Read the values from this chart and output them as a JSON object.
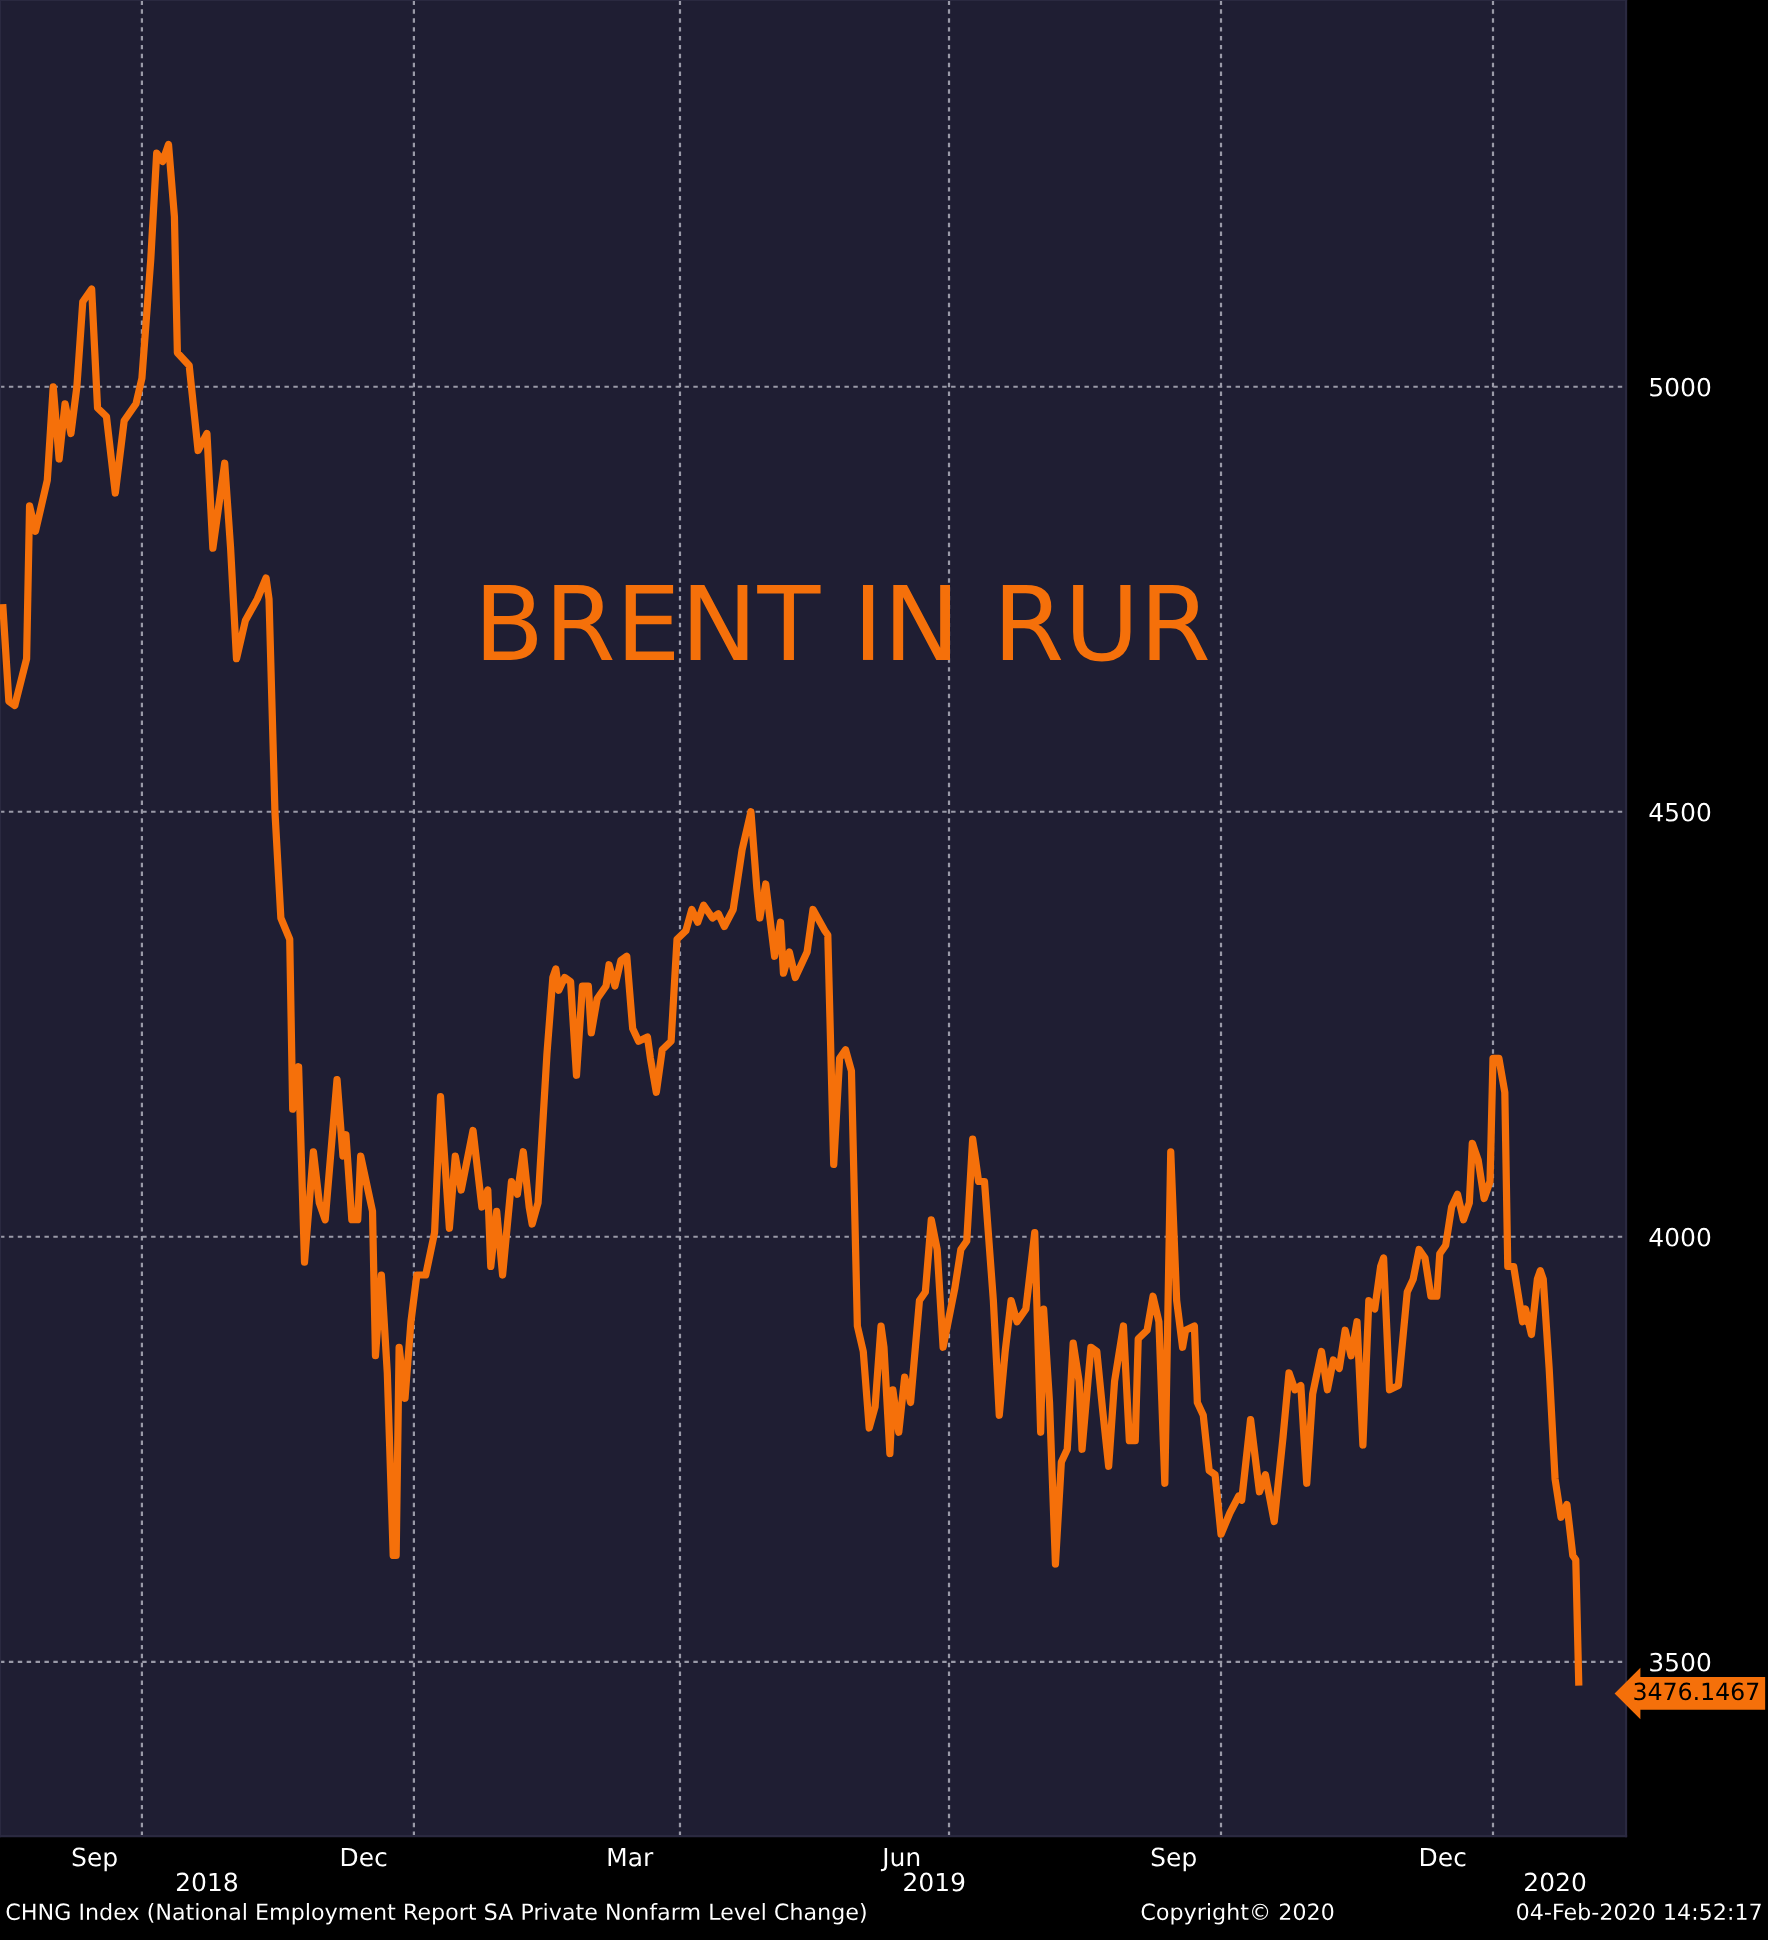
{
  "chart_data": {
    "type": "line",
    "title": "BRENT IN RUR",
    "x": [
      "2018-08-15",
      "2018-08-17",
      "2018-08-19",
      "2018-08-23",
      "2018-08-24",
      "2018-08-26",
      "2018-08-30",
      "2018-09-01",
      "2018-09-03",
      "2018-09-05",
      "2018-09-07",
      "2018-09-09",
      "2018-09-11",
      "2018-09-14",
      "2018-09-16",
      "2018-09-19",
      "2018-09-22",
      "2018-09-25",
      "2018-09-29",
      "2018-10-01",
      "2018-10-04",
      "2018-10-06",
      "2018-10-08",
      "2018-10-10",
      "2018-10-12",
      "2018-10-13",
      "2018-10-17",
      "2018-10-20",
      "2018-10-23",
      "2018-10-25",
      "2018-10-29",
      "2018-10-31",
      "2018-11-02",
      "2018-11-05",
      "2018-11-09",
      "2018-11-12",
      "2018-11-13",
      "2018-11-15",
      "2018-11-17",
      "2018-11-20",
      "2018-11-21",
      "2018-11-23",
      "2018-11-25",
      "2018-11-28",
      "2018-11-30",
      "2018-12-02",
      "2018-12-06",
      "2018-12-08",
      "2018-12-09",
      "2018-12-11",
      "2018-12-13",
      "2018-12-14",
      "2018-12-18",
      "2018-12-19",
      "2018-12-21",
      "2018-12-23",
      "2018-12-25",
      "2018-12-26",
      "2018-12-27",
      "2018-12-29",
      "2018-12-31",
      "2019-01-02",
      "2019-01-05",
      "2019-01-08",
      "2019-01-10",
      "2019-01-13",
      "2019-01-15",
      "2019-01-17",
      "2019-01-21",
      "2019-01-24",
      "2019-01-26",
      "2019-01-27",
      "2019-01-29",
      "2019-01-31",
      "2019-02-03",
      "2019-02-05",
      "2019-02-07",
      "2019-02-09",
      "2019-02-10",
      "2019-02-12",
      "2019-02-15",
      "2019-02-17",
      "2019-02-18",
      "2019-02-19",
      "2019-02-21",
      "2019-02-23",
      "2019-02-25",
      "2019-02-27",
      "2019-03-01",
      "2019-03-02",
      "2019-03-04",
      "2019-03-07",
      "2019-03-08",
      "2019-03-10",
      "2019-03-12",
      "2019-03-14",
      "2019-03-16",
      "2019-03-18",
      "2019-03-21",
      "2019-03-22",
      "2019-03-24",
      "2019-03-26",
      "2019-03-29",
      "2019-03-31",
      "2019-04-03",
      "2019-04-05",
      "2019-04-07",
      "2019-04-09",
      "2019-04-12",
      "2019-04-14",
      "2019-04-16",
      "2019-04-19",
      "2019-04-22",
      "2019-04-25",
      "2019-04-27",
      "2019-04-28",
      "2019-04-30",
      "2019-05-03",
      "2019-05-05",
      "2019-05-06",
      "2019-05-08",
      "2019-05-10",
      "2019-05-14",
      "2019-05-16",
      "2019-05-20",
      "2019-05-21",
      "2019-05-23",
      "2019-05-25",
      "2019-05-27",
      "2019-05-29",
      "2019-05-31",
      "2019-06-02",
      "2019-06-04",
      "2019-06-06",
      "2019-06-08",
      "2019-06-09",
      "2019-06-11",
      "2019-06-12",
      "2019-06-14",
      "2019-06-16",
      "2019-06-18",
      "2019-06-21",
      "2019-06-23",
      "2019-06-25",
      "2019-06-27",
      "2019-06-29",
      "2019-07-03",
      "2019-07-05",
      "2019-07-07",
      "2019-07-09",
      "2019-07-11",
      "2019-07-13",
      "2019-07-16",
      "2019-07-18",
      "2019-07-20",
      "2019-07-22",
      "2019-07-24",
      "2019-07-27",
      "2019-07-30",
      "2019-08-01",
      "2019-08-02",
      "2019-08-04",
      "2019-08-06",
      "2019-08-08",
      "2019-08-10",
      "2019-08-12",
      "2019-08-14",
      "2019-08-15",
      "2019-08-18",
      "2019-08-20",
      "2019-08-22",
      "2019-08-24",
      "2019-08-26",
      "2019-08-29",
      "2019-08-31",
      "2019-09-02",
      "2019-09-03",
      "2019-09-06",
      "2019-09-08",
      "2019-09-10",
      "2019-09-12",
      "2019-09-14",
      "2019-09-16",
      "2019-09-18",
      "2019-09-19",
      "2019-09-22",
      "2019-09-23",
      "2019-09-25",
      "2019-09-27",
      "2019-09-29",
      "2019-10-01",
      "2019-10-04",
      "2019-10-07",
      "2019-10-08",
      "2019-10-11",
      "2019-10-14",
      "2019-10-16",
      "2019-10-19",
      "2019-10-22",
      "2019-10-24",
      "2019-10-26",
      "2019-10-28",
      "2019-10-30",
      "2019-11-01",
      "2019-11-04",
      "2019-11-06",
      "2019-11-08",
      "2019-11-10",
      "2019-11-12",
      "2019-11-14",
      "2019-11-16",
      "2019-11-18",
      "2019-11-20",
      "2019-11-22",
      "2019-11-24",
      "2019-11-25",
      "2019-11-27",
      "2019-11-30",
      "2019-12-03",
      "2019-12-05",
      "2019-12-07",
      "2019-12-09",
      "2019-12-11",
      "2019-12-13",
      "2019-12-14",
      "2019-12-16",
      "2019-12-18",
      "2019-12-20",
      "2019-12-22",
      "2019-12-24",
      "2019-12-25",
      "2019-12-27",
      "2019-12-29",
      "2019-12-31",
      "2020-01-01",
      "2020-01-03",
      "2020-01-05",
      "2020-01-06",
      "2020-01-08",
      "2020-01-11",
      "2020-01-12",
      "2020-01-14",
      "2020-01-16",
      "2020-01-17",
      "2020-01-18",
      "2020-01-20",
      "2020-01-22",
      "2020-01-24",
      "2020-01-26",
      "2020-01-28",
      "2020-01-29",
      "2020-01-30"
    ],
    "series": [
      {
        "color": "#f5700a",
        "values": [
          4740,
          4630,
          4625,
          4680,
          4860,
          4830,
          4890,
          5000,
          4915,
          4980,
          4945,
          5000,
          5100,
          5115,
          4975,
          4965,
          4875,
          4960,
          4980,
          5010,
          5150,
          5275,
          5265,
          5285,
          5200,
          5040,
          5025,
          4925,
          4945,
          4810,
          4910,
          4810,
          4680,
          4725,
          4750,
          4775,
          4750,
          4500,
          4375,
          4350,
          4150,
          4200,
          3970,
          4100,
          4040,
          4020,
          4185,
          4095,
          4120,
          4020,
          4020,
          4095,
          4030,
          3860,
          3955,
          3840,
          3625,
          3625,
          3870,
          3810,
          3900,
          3955,
          3955,
          4005,
          4165,
          4010,
          4095,
          4055,
          4125,
          4035,
          4055,
          3965,
          4030,
          3955,
          4065,
          4050,
          4100,
          4035,
          4015,
          4040,
          4215,
          4305,
          4315,
          4290,
          4305,
          4300,
          4190,
          4295,
          4295,
          4240,
          4280,
          4295,
          4320,
          4295,
          4325,
          4330,
          4245,
          4230,
          4235,
          4210,
          4170,
          4220,
          4230,
          4350,
          4360,
          4385,
          4370,
          4390,
          4375,
          4380,
          4365,
          4385,
          4455,
          4500,
          4410,
          4375,
          4415,
          4330,
          4370,
          4310,
          4335,
          4305,
          4335,
          4385,
          4360,
          4355,
          4085,
          4210,
          4220,
          4195,
          3895,
          3865,
          3775,
          3800,
          3895,
          3870,
          3745,
          3820,
          3770,
          3835,
          3805,
          3925,
          3935,
          4020,
          3985,
          3870,
          3940,
          3985,
          3995,
          4115,
          4065,
          4065,
          3925,
          3790,
          3865,
          3925,
          3900,
          3915,
          4005,
          3770,
          3915,
          3805,
          3615,
          3735,
          3750,
          3875,
          3830,
          3750,
          3870,
          3865,
          3795,
          3730,
          3830,
          3895,
          3760,
          3760,
          3880,
          3890,
          3930,
          3900,
          3710,
          4100,
          3925,
          3870,
          3890,
          3895,
          3805,
          3790,
          3725,
          3720,
          3650,
          3675,
          3695,
          3690,
          3785,
          3700,
          3720,
          3665,
          3765,
          3840,
          3820,
          3825,
          3710,
          3815,
          3865,
          3820,
          3855,
          3845,
          3890,
          3860,
          3900,
          3755,
          3925,
          3915,
          3965,
          3975,
          3820,
          3825,
          3935,
          3950,
          3985,
          3975,
          3930,
          3930,
          3980,
          3990,
          4035,
          4050,
          4020,
          4040,
          4110,
          4090,
          4045,
          4065,
          4210,
          4210,
          4170,
          3965,
          3965,
          3900,
          3915,
          3885,
          3950,
          3960,
          3950,
          3845,
          3715,
          3670,
          3685,
          3625,
          3620,
          3476.1467
        ]
      }
    ],
    "xlim": [
      "2018-08-14",
      "2020-02-15"
    ],
    "ylim": [
      3295,
      5455
    ],
    "yticks": [
      3500,
      4000,
      4500,
      5000
    ],
    "xticks": [
      {
        "value": "2018-09-15",
        "label": "Sep"
      },
      {
        "value": "2018-10-01",
        "label": null
      },
      {
        "value": "2018-12-15",
        "label": "Dec"
      },
      {
        "value": "2019-01-01",
        "label": null
      },
      {
        "value": "2019-03-15",
        "label": "Mar"
      },
      {
        "value": "2019-04-01",
        "label": null
      },
      {
        "value": "2019-06-15",
        "label": "Jun"
      },
      {
        "value": "2019-07-01",
        "label": null
      },
      {
        "value": "2019-09-15",
        "label": "Sep"
      },
      {
        "value": "2019-10-01",
        "label": null
      },
      {
        "value": "2019-12-15",
        "label": "Dec"
      },
      {
        "value": "2020-01-01",
        "label": null
      }
    ],
    "x2lim": [
      "2018-08-14",
      "2020-02-15"
    ],
    "x2ticks": [
      {
        "value": "2018-10-23",
        "label": "2018"
      },
      {
        "value": "2019-06-26",
        "label": "2019"
      },
      {
        "value": "2020-01-22",
        "label": "2020"
      }
    ],
    "grid": true,
    "annotations": [
      {
        "text": "3476.1467",
        "x": "2020-01-30",
        "y": 3476.1467
      },
      "CHNG Index (National Employment Report SA Private Nonfarm Level Change)",
      "Copyright© 2020",
      "04-Feb-2020 14:52:17"
    ]
  }
}
